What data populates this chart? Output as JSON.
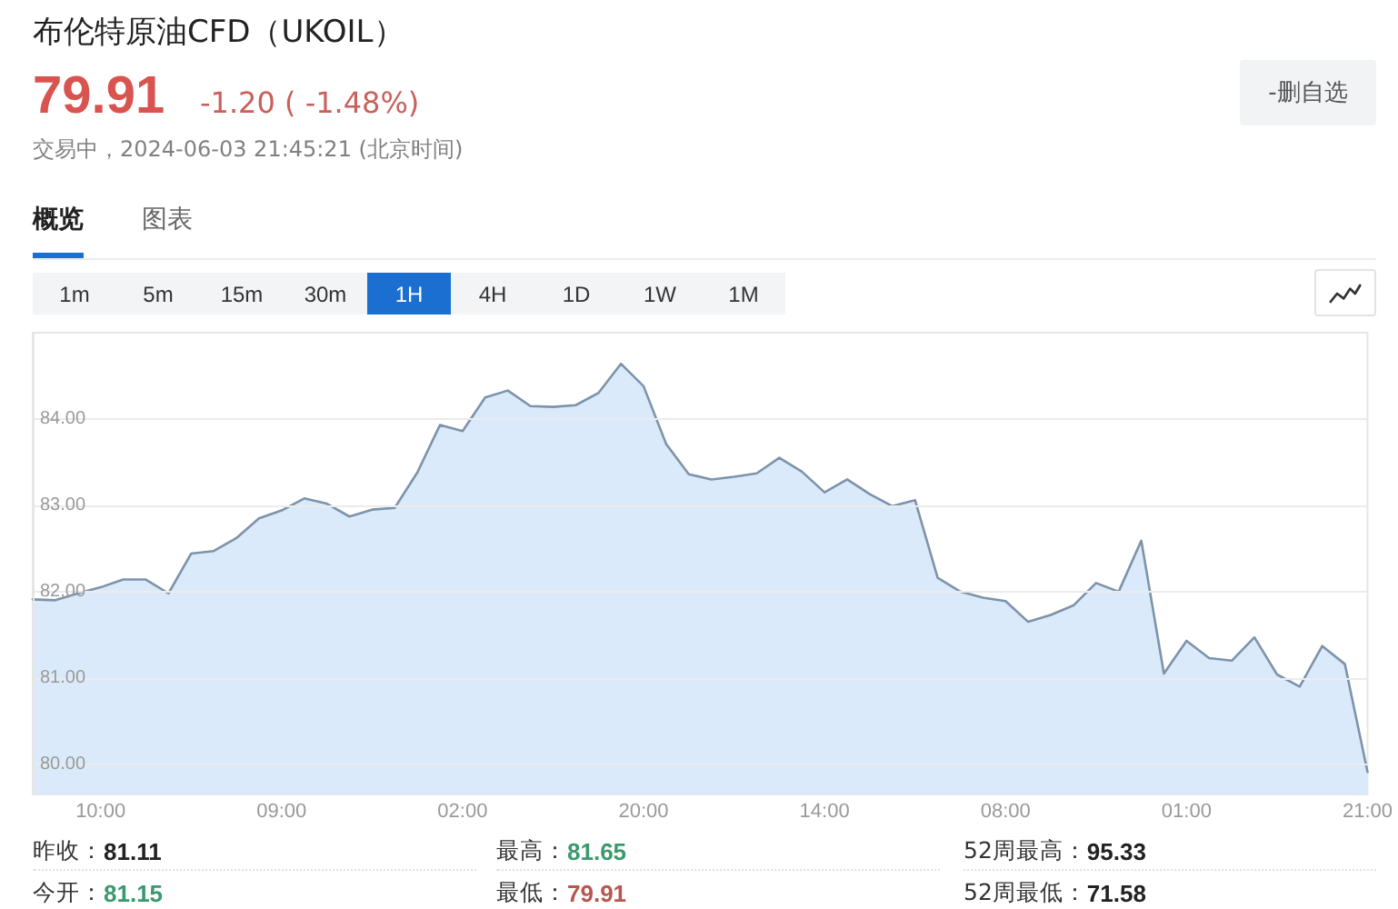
{
  "chart_data": {
    "type": "area",
    "title": "布伦特原油CFD（UKOIL）",
    "annotations": [
      "79.91",
      "-1.20 ( -1.48%)",
      "交易中，2024-06-03 21:45:21 (北京时间)",
      "-删自选",
      "概览",
      "图表",
      "1m",
      "5m",
      "15m",
      "30m",
      "1H",
      "4H",
      "1D",
      "1W",
      "1M",
      "昨收：",
      "81.11",
      "最高：",
      "81.65",
      "52周最高：",
      "95.33",
      "今开：",
      "81.15",
      "最低：",
      "79.91",
      "52周最低：",
      "71.58"
    ],
    "categories": [
      null,
      null,
      null,
      "10:00",
      null,
      null,
      null,
      null,
      null,
      null,
      null,
      "09:00",
      null,
      null,
      null,
      null,
      null,
      null,
      null,
      "02:00",
      null,
      null,
      null,
      null,
      null,
      null,
      null,
      "20:00",
      null,
      null,
      null,
      null,
      null,
      null,
      null,
      "14:00",
      null,
      null,
      null,
      null,
      null,
      null,
      null,
      "08:00",
      null,
      null,
      null,
      null,
      null,
      null,
      null,
      "01:00",
      null,
      null,
      null,
      null,
      null,
      null,
      null,
      "21:00"
    ],
    "values": [
      81.91,
      81.9,
      81.98,
      82.05,
      82.14,
      82.14,
      81.98,
      82.44,
      82.47,
      82.62,
      82.85,
      82.94,
      83.08,
      83.02,
      82.87,
      82.95,
      82.97,
      83.38,
      83.93,
      83.86,
      84.25,
      84.33,
      84.15,
      84.14,
      84.16,
      84.3,
      84.64,
      84.38,
      83.71,
      83.36,
      83.3,
      83.33,
      83.37,
      83.55,
      83.39,
      83.15,
      83.3,
      83.13,
      82.99,
      83.06,
      82.16,
      82.0,
      81.93,
      81.89,
      81.65,
      81.73,
      81.84,
      82.1,
      82.0,
      82.59,
      81.05,
      81.43,
      81.23,
      81.2,
      81.47,
      81.04,
      80.9,
      81.37,
      81.16,
      79.91
    ],
    "color": "#dbeafa",
    "ylim": [
      79.65,
      85
    ],
    "yticks": [
      {
        "value": 80,
        "label": "80.00"
      },
      {
        "value": 81,
        "label": "81.00"
      },
      {
        "value": 82,
        "label": "82.00"
      },
      {
        "value": 83,
        "label": "83.00"
      },
      {
        "value": 84,
        "label": "84.00"
      }
    ],
    "grid": "y",
    "marker": "none"
  }
}
